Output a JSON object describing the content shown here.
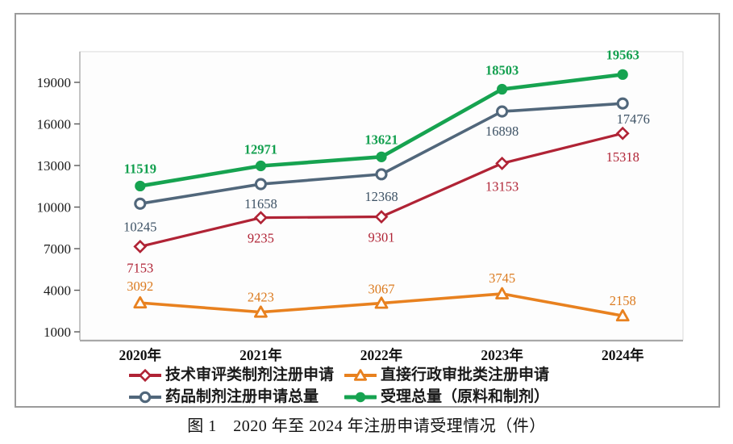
{
  "caption": "图 1　2020 年至 2024 年注册申请受理情况（件）",
  "chart_data": {
    "type": "line",
    "title": "图 1　2020 年至 2024 年注册申请受理情况（件）",
    "xlabel": "",
    "ylabel": "",
    "categories": [
      "2020年",
      "2021年",
      "2022年",
      "2023年",
      "2024年"
    ],
    "y_ticks": [
      1000,
      4000,
      7000,
      10000,
      13000,
      16000,
      19000
    ],
    "ylim": [
      420,
      21250
    ],
    "grid": false,
    "legend_position": "bottom",
    "series": [
      {
        "name": "技术审评类制剂注册申请",
        "color": "#b02335",
        "label_color": "#b02335",
        "marker": "diamond-open",
        "line_width": 3.2,
        "label_position": "below",
        "values": [
          7153,
          9235,
          9301,
          13153,
          15318
        ],
        "label_offsets": [
          [
            0,
            32
          ],
          [
            0,
            31
          ],
          [
            0,
            31
          ],
          [
            0,
            34
          ],
          [
            0,
            35
          ]
        ]
      },
      {
        "name": "直接行政审批类注册申请",
        "color": "#e8811f",
        "label_color": "#db7a1e",
        "marker": "triangle-open",
        "line_width": 3.6,
        "label_position": "above",
        "values": [
          3092,
          2423,
          3067,
          3745,
          2158
        ],
        "label_offsets": [
          [
            0,
            -15
          ],
          [
            0,
            -13
          ],
          [
            0,
            -12
          ],
          [
            0,
            -14
          ],
          [
            0,
            -13
          ]
        ]
      },
      {
        "name": "药品制剂注册申请总量",
        "color": "#51677b",
        "label_color": "#3d5265",
        "marker": "circle-open",
        "line_width": 3.6,
        "label_position": "below",
        "values": [
          10245,
          11658,
          12368,
          16898,
          17476
        ],
        "label_offsets": [
          [
            0,
            34
          ],
          [
            0,
            30
          ],
          [
            0,
            33
          ],
          [
            0,
            30
          ],
          [
            13,
            25
          ]
        ]
      },
      {
        "name": "受理总量（原料和制剂）",
        "color": "#16a350",
        "label_color": "#13a04f",
        "marker": "circle-filled",
        "line_width": 4.6,
        "bold_labels": true,
        "label_position": "above",
        "values": [
          11519,
          12971,
          13621,
          18503,
          19563
        ],
        "label_offsets": [
          [
            0,
            -16
          ],
          [
            0,
            -15
          ],
          [
            0,
            -16
          ],
          [
            0,
            -18
          ],
          [
            0,
            -19
          ]
        ]
      }
    ]
  }
}
